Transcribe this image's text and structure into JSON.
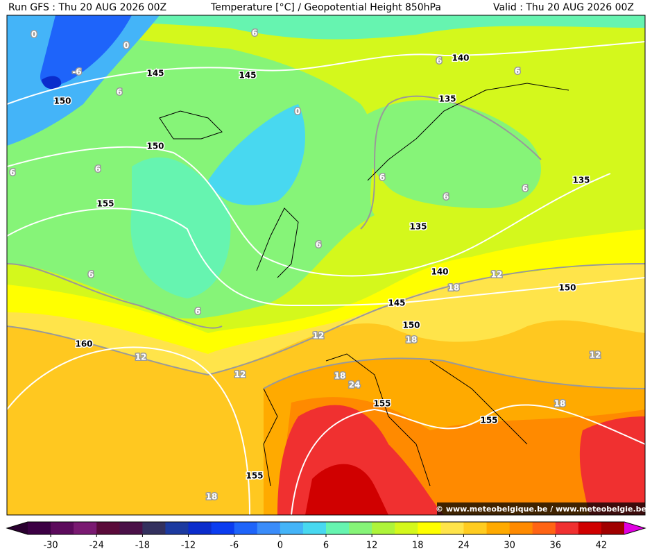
{
  "header": {
    "run": "Run GFS : Thu 20 AUG 2026 00Z",
    "title": "Temperature [°C] / Geopotential Height 850hPa",
    "valid": "Valid : Thu 20 AUG 2026 00Z"
  },
  "height_labels": [
    140,
    145,
    145,
    150,
    135,
    150,
    135,
    155,
    135,
    140,
    150,
    145,
    150,
    160,
    155,
    155,
    155
  ],
  "temperature_labels": [
    6,
    0,
    0,
    -6,
    6,
    6,
    6,
    0,
    6,
    6,
    6,
    6,
    6,
    6,
    6,
    6,
    12,
    18,
    12,
    18,
    12,
    12,
    12,
    18,
    24,
    18,
    18
  ],
  "watermark": "© www.meteobelgique.be / www.meteobelgie.be",
  "colorbar": {
    "ticks": [
      -30,
      -24,
      -18,
      -12,
      -6,
      0,
      6,
      12,
      18,
      24,
      30,
      36,
      42
    ],
    "lim": [
      -33,
      45
    ],
    "colors": [
      "#3c0044",
      "#5c0a5c",
      "#7a1a72",
      "#5a0a3a",
      "#4a1048",
      "#33305e",
      "#1c3aa0",
      "#0a2ccc",
      "#0a3cf0",
      "#1e64fa",
      "#3a8cfa",
      "#44b4f8",
      "#48d8f0",
      "#66f4b0",
      "#86f478",
      "#aef43a",
      "#d4f81c",
      "#ffff00",
      "#ffe44a",
      "#ffcc20",
      "#ffaa00",
      "#ff8a00",
      "#ff6414",
      "#f03030",
      "#d00000",
      "#a00000"
    ],
    "under_color": "#2a0030",
    "over_color": "#e000e0"
  }
}
